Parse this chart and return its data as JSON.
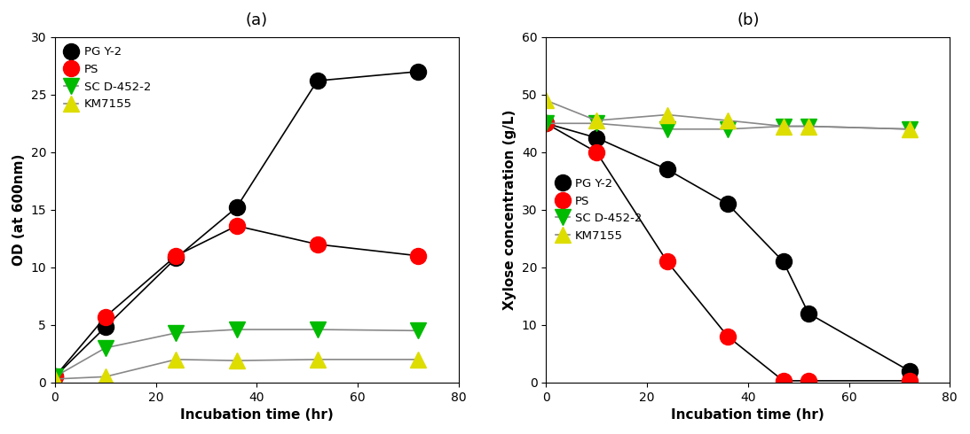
{
  "panel_a": {
    "title": "(a)",
    "xlabel": "Incubation time (hr)",
    "ylabel": "OD (at 600nm)",
    "xlim": [
      0,
      80
    ],
    "ylim": [
      0,
      30
    ],
    "xticks": [
      0,
      20,
      40,
      60,
      80
    ],
    "yticks": [
      0,
      5,
      10,
      15,
      20,
      25,
      30
    ],
    "series": [
      {
        "label": "PG Y-2",
        "color": "#000000",
        "line_color": "#000000",
        "marker": "o",
        "markersize": 13,
        "x": [
          0,
          10,
          24,
          36,
          52,
          72
        ],
        "y": [
          0.5,
          4.8,
          10.8,
          15.2,
          26.2,
          27.0
        ]
      },
      {
        "label": "PS",
        "color": "#ff0000",
        "line_color": "#000000",
        "marker": "o",
        "markersize": 13,
        "x": [
          0,
          10,
          24,
          36,
          52,
          72
        ],
        "y": [
          0.5,
          5.7,
          11.0,
          13.6,
          12.0,
          11.0
        ]
      },
      {
        "label": "SC D-452-2",
        "color": "#00bb00",
        "line_color": "#888888",
        "marker": "v",
        "markersize": 13,
        "x": [
          0,
          10,
          24,
          36,
          52,
          72
        ],
        "y": [
          0.5,
          3.0,
          4.3,
          4.6,
          4.6,
          4.5
        ]
      },
      {
        "label": "KM7155",
        "color": "#dddd00",
        "line_color": "#888888",
        "marker": "^",
        "markersize": 13,
        "x": [
          0,
          10,
          24,
          36,
          52,
          72
        ],
        "y": [
          0.3,
          0.5,
          2.0,
          1.9,
          2.0,
          2.0
        ]
      }
    ]
  },
  "panel_b": {
    "title": "(b)",
    "xlabel": "Incubation time (hr)",
    "ylabel": "Xylose concentration (g/L)",
    "xlim": [
      0,
      80
    ],
    "ylim": [
      0,
      60
    ],
    "xticks": [
      0,
      20,
      40,
      60,
      80
    ],
    "yticks": [
      0,
      10,
      20,
      30,
      40,
      50,
      60
    ],
    "series": [
      {
        "label": "PG Y-2",
        "color": "#000000",
        "line_color": "#000000",
        "marker": "o",
        "markersize": 13,
        "x": [
          0,
          10,
          24,
          36,
          47,
          52,
          72
        ],
        "y": [
          45.0,
          42.5,
          37.0,
          31.0,
          21.0,
          12.0,
          2.0
        ]
      },
      {
        "label": "PS",
        "color": "#ff0000",
        "line_color": "#000000",
        "marker": "o",
        "markersize": 13,
        "x": [
          0,
          10,
          24,
          36,
          47,
          52,
          72
        ],
        "y": [
          45.0,
          40.0,
          21.0,
          8.0,
          0.3,
          0.3,
          0.3
        ]
      },
      {
        "label": "SC D-452-2",
        "color": "#00bb00",
        "line_color": "#888888",
        "marker": "v",
        "markersize": 13,
        "x": [
          0,
          10,
          24,
          36,
          47,
          52,
          72
        ],
        "y": [
          45.0,
          45.0,
          44.0,
          44.0,
          44.5,
          44.5,
          44.0
        ]
      },
      {
        "label": "KM7155",
        "color": "#dddd00",
        "line_color": "#888888",
        "marker": "^",
        "markersize": 13,
        "x": [
          0,
          10,
          24,
          36,
          47,
          52,
          72
        ],
        "y": [
          49.0,
          45.5,
          46.5,
          45.5,
          44.5,
          44.5,
          44.0
        ]
      }
    ]
  },
  "figsize": [
    10.93,
    4.9
  ],
  "dpi": 100,
  "linewidth": 1.2,
  "legend_fontsize": 9.5,
  "axis_label_fontsize": 11,
  "tick_fontsize": 10,
  "title_fontsize": 13,
  "bg_color": "#ffffff"
}
